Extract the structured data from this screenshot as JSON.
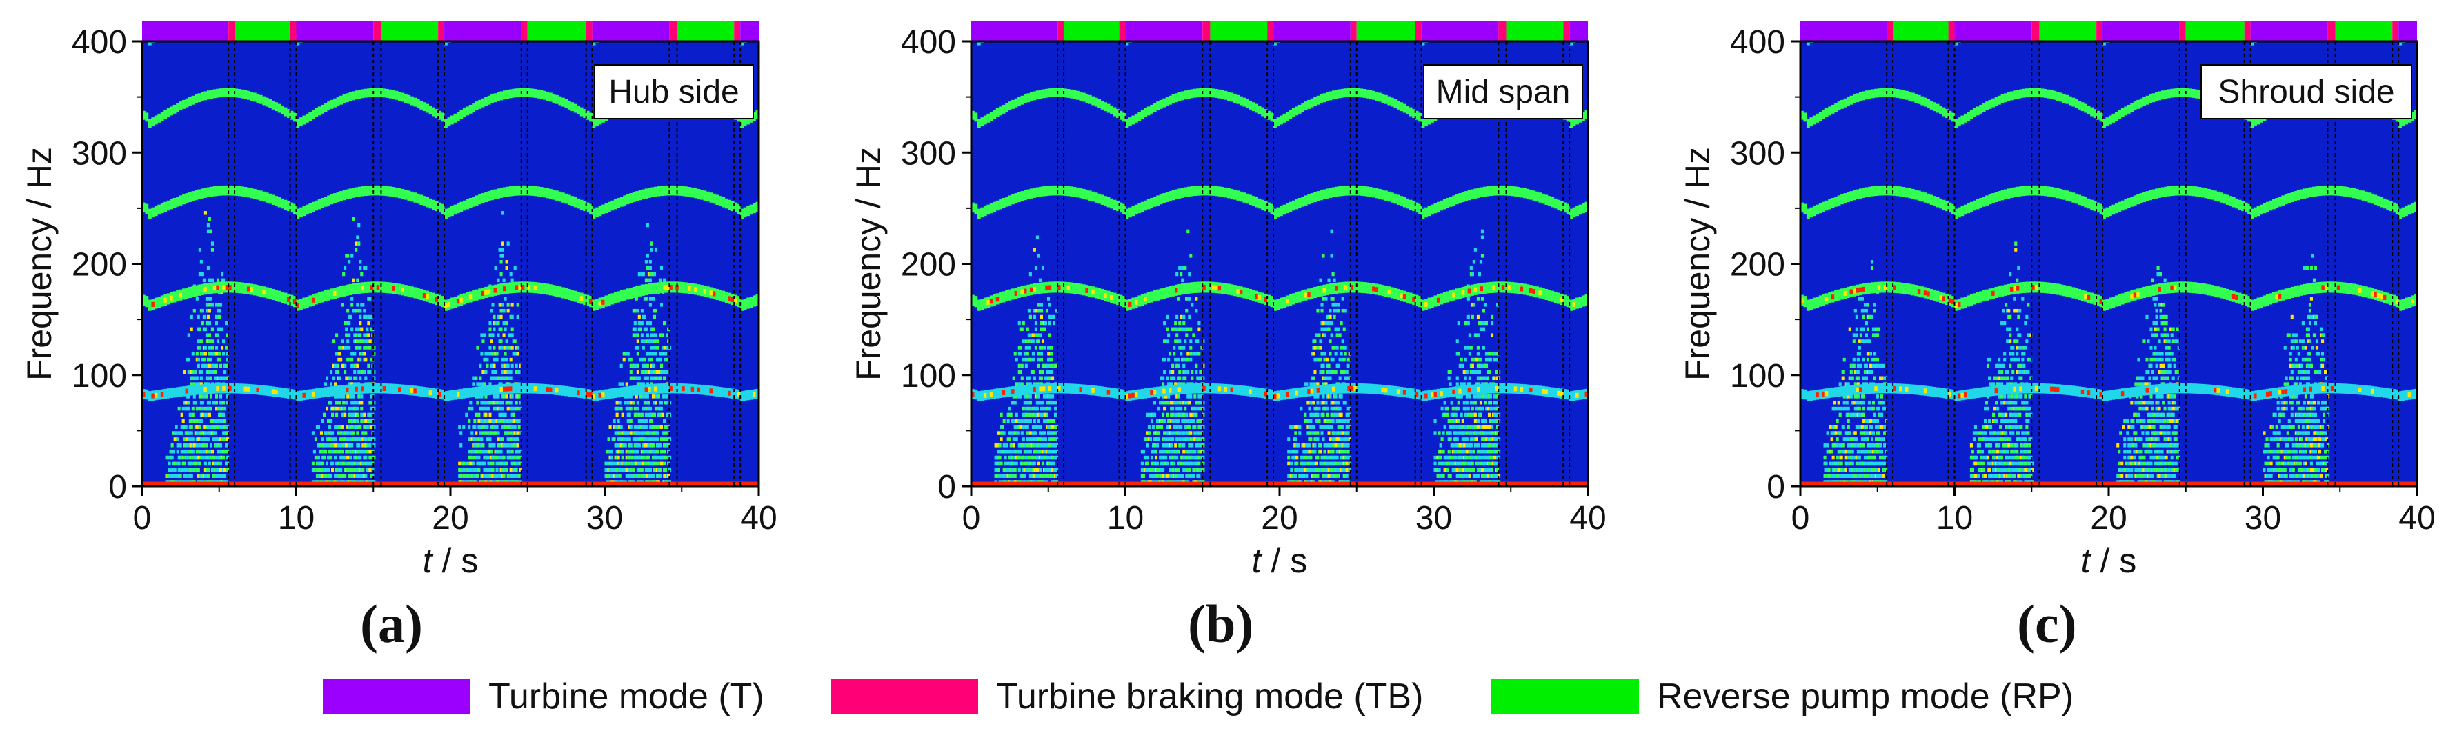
{
  "chart_data": [
    {
      "type": "heatmap",
      "label_box": "Hub side",
      "caption": "(a)",
      "xlabel_italic": "t",
      "xlabel_rest": " / s",
      "ylabel": "Frequency / Hz",
      "xlim": [
        0,
        40
      ],
      "ylim": [
        0,
        400
      ],
      "x_ticks": [
        "0",
        "10",
        "20",
        "30",
        "40"
      ],
      "y_ticks": [
        "0",
        "100",
        "200",
        "300",
        "400"
      ],
      "intensity": 1.0
    },
    {
      "type": "heatmap",
      "label_box": "Mid span",
      "caption": "(b)",
      "xlabel_italic": "t",
      "xlabel_rest": " / s",
      "ylabel": "Frequency / Hz",
      "xlim": [
        0,
        40
      ],
      "ylim": [
        0,
        400
      ],
      "x_ticks": [
        "0",
        "10",
        "20",
        "30",
        "40"
      ],
      "y_ticks": [
        "0",
        "100",
        "200",
        "300",
        "400"
      ],
      "intensity": 0.9
    },
    {
      "type": "heatmap",
      "label_box": "Shroud side",
      "caption": "(c)",
      "xlabel_italic": "t",
      "xlabel_rest": " / s",
      "ylabel": "Frequency / Hz",
      "xlim": [
        0,
        40
      ],
      "ylim": [
        0,
        400
      ],
      "x_ticks": [
        "0",
        "10",
        "20",
        "30",
        "40"
      ],
      "y_ticks": [
        "0",
        "100",
        "200",
        "300",
        "400"
      ],
      "intensity": 0.8
    }
  ],
  "mode_bar": [
    {
      "mode": "T",
      "start": 0,
      "end": 5.6
    },
    {
      "mode": "TB",
      "start": 5.6,
      "end": 6.0
    },
    {
      "mode": "RP",
      "start": 6.0,
      "end": 9.6
    },
    {
      "mode": "TB",
      "start": 9.6,
      "end": 10.0
    },
    {
      "mode": "T",
      "start": 10.0,
      "end": 15.0
    },
    {
      "mode": "TB",
      "start": 15.0,
      "end": 15.5
    },
    {
      "mode": "RP",
      "start": 15.5,
      "end": 19.2
    },
    {
      "mode": "TB",
      "start": 19.2,
      "end": 19.6
    },
    {
      "mode": "T",
      "start": 19.6,
      "end": 24.6
    },
    {
      "mode": "TB",
      "start": 24.6,
      "end": 25.0
    },
    {
      "mode": "RP",
      "start": 25.0,
      "end": 28.8
    },
    {
      "mode": "TB",
      "start": 28.8,
      "end": 29.2
    },
    {
      "mode": "T",
      "start": 29.2,
      "end": 34.2
    },
    {
      "mode": "TB",
      "start": 34.2,
      "end": 34.7
    },
    {
      "mode": "RP",
      "start": 34.7,
      "end": 38.4
    },
    {
      "mode": "TB",
      "start": 38.4,
      "end": 38.8
    },
    {
      "mode": "T",
      "start": 38.8,
      "end": 40.0
    }
  ],
  "mode_lines": [
    5.6,
    6.0,
    9.6,
    10.0,
    15.0,
    15.5,
    19.2,
    19.6,
    24.6,
    25.0,
    28.8,
    29.2,
    34.2,
    34.7,
    38.4,
    38.8
  ],
  "legend": [
    {
      "key": "T",
      "label": "Turbine mode (T)",
      "color": "#9b00ff"
    },
    {
      "key": "TB",
      "label": "Turbine braking mode (TB)",
      "color": "#ff0077"
    },
    {
      "key": "RP",
      "label": "Reverse pump mode (RP)",
      "color": "#00ee00"
    }
  ],
  "colors": {
    "background": "#0a1ecc",
    "low": "#22d8e8",
    "mid": "#32ff50",
    "high": "#ffe600",
    "peak": "#ff2200"
  }
}
